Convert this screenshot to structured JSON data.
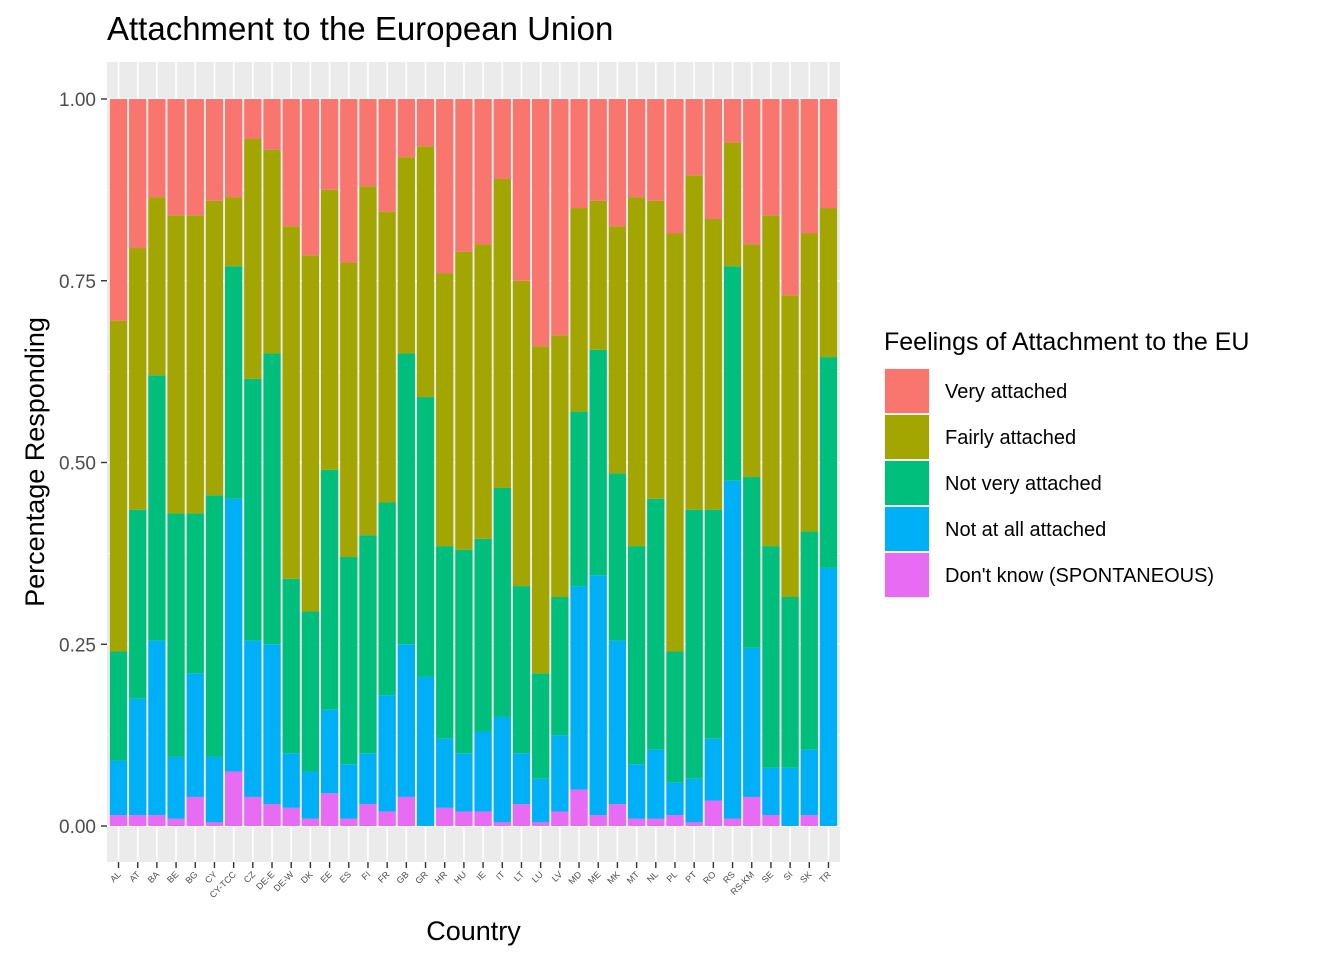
{
  "chart_data": {
    "type": "bar",
    "stacked": true,
    "title": "Attachment to the European Union",
    "xlabel": "Country",
    "ylabel": "Percentage Responding",
    "ylim": [
      0,
      1
    ],
    "yticks": [
      "0.00",
      "0.25",
      "0.50",
      "0.75",
      "1.00"
    ],
    "grid": true,
    "legend": {
      "title": "Feelings of Attachment to the EU",
      "position": "right"
    },
    "categories": [
      "AL",
      "AT",
      "BA",
      "BE",
      "BG",
      "CY",
      "CY-TCC",
      "CZ",
      "DE-E",
      "DE-W",
      "DK",
      "EE",
      "ES",
      "FI",
      "FR",
      "GB",
      "GR",
      "HR",
      "HU",
      "IE",
      "IT",
      "LT",
      "LU",
      "LV",
      "MD",
      "ME",
      "MK",
      "MT",
      "NL",
      "PL",
      "PT",
      "RO",
      "RS",
      "RS-KM",
      "SE",
      "SI",
      "SK",
      "TR"
    ],
    "series": [
      {
        "name": "Very attached",
        "color": "#F8766D",
        "values": [
          0.305,
          0.205,
          0.135,
          0.16,
          0.16,
          0.14,
          0.135,
          0.055,
          0.07,
          0.175,
          0.215,
          0.125,
          0.225,
          0.12,
          0.155,
          0.08,
          0.065,
          0.24,
          0.21,
          0.2,
          0.11,
          0.25,
          0.34,
          0.325,
          0.15,
          0.14,
          0.175,
          0.135,
          0.14,
          0.185,
          0.105,
          0.165,
          0.06,
          0.2,
          0.16,
          0.27,
          0.185,
          0.15
        ]
      },
      {
        "name": "Fairly attached",
        "color": "#A3A500",
        "values": [
          0.455,
          0.36,
          0.245,
          0.41,
          0.41,
          0.405,
          0.095,
          0.33,
          0.28,
          0.485,
          0.49,
          0.385,
          0.405,
          0.48,
          0.4,
          0.27,
          0.345,
          0.375,
          0.41,
          0.405,
          0.425,
          0.42,
          0.45,
          0.36,
          0.28,
          0.205,
          0.34,
          0.48,
          0.41,
          0.575,
          0.46,
          0.4,
          0.17,
          0.32,
          0.455,
          0.415,
          0.41,
          0.205
        ]
      },
      {
        "name": "Not very attached",
        "color": "#00BF7D",
        "values": [
          0.15,
          0.26,
          0.365,
          0.335,
          0.22,
          0.36,
          0.32,
          0.36,
          0.4,
          0.24,
          0.22,
          0.33,
          0.285,
          0.3,
          0.265,
          0.4,
          0.385,
          0.265,
          0.28,
          0.265,
          0.315,
          0.23,
          0.145,
          0.19,
          0.24,
          0.31,
          0.23,
          0.3,
          0.345,
          0.18,
          0.37,
          0.315,
          0.295,
          0.235,
          0.305,
          0.235,
          0.3,
          0.29
        ]
      },
      {
        "name": "Not at all attached",
        "color": "#00B0F6",
        "values": [
          0.075,
          0.16,
          0.24,
          0.085,
          0.17,
          0.09,
          0.375,
          0.215,
          0.22,
          0.075,
          0.065,
          0.115,
          0.075,
          0.07,
          0.16,
          0.21,
          0.205,
          0.095,
          0.08,
          0.11,
          0.145,
          0.07,
          0.06,
          0.105,
          0.28,
          0.33,
          0.225,
          0.075,
          0.095,
          0.045,
          0.06,
          0.085,
          0.465,
          0.205,
          0.065,
          0.08,
          0.09,
          0.355
        ]
      },
      {
        "name": "Don't know (SPONTANEOUS)",
        "color": "#E76BF3",
        "values": [
          0.015,
          0.015,
          0.015,
          0.01,
          0.04,
          0.005,
          0.075,
          0.04,
          0.03,
          0.025,
          0.01,
          0.045,
          0.01,
          0.03,
          0.02,
          0.04,
          0.0,
          0.025,
          0.02,
          0.02,
          0.005,
          0.03,
          0.005,
          0.02,
          0.05,
          0.015,
          0.03,
          0.01,
          0.01,
          0.015,
          0.005,
          0.035,
          0.01,
          0.04,
          0.015,
          0.0,
          0.015,
          0.0
        ]
      }
    ]
  }
}
